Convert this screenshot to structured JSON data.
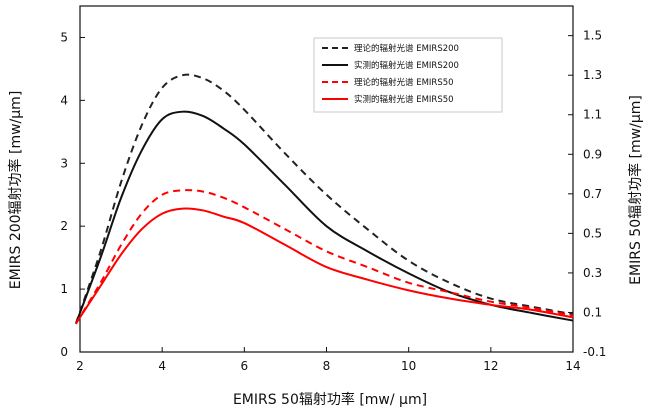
{
  "chart_data": {
    "type": "line",
    "xlabel": "EMIRS 50辐射功率 [mw/ µm]",
    "ylabel_left": "EMIRS 200辐射功率 [mw/µm]",
    "ylabel_right": "EMIRS 50辐射功率 [mw/µm]",
    "xlim": [
      2,
      14
    ],
    "ylim_left": [
      0,
      5.5
    ],
    "ylim_right": [
      -0.1,
      1.65
    ],
    "x_ticks": [
      "2",
      "4",
      "6",
      "8",
      "10",
      "12",
      "14"
    ],
    "y_left_ticks": [
      "0",
      "1",
      "2",
      "3",
      "4",
      "5"
    ],
    "y_right_ticks": [
      "-0.1",
      "0.1",
      "0.3",
      "0.5",
      "0.7",
      "0.9",
      "1.1",
      "1.3",
      "1.5"
    ],
    "grid": false,
    "legend_position": "top-right",
    "series": [
      {
        "name": "理论的辐射光谱 EMIRS200",
        "color": "#222222",
        "dash": true,
        "axis": "left",
        "x": [
          1.9,
          2.5,
          3.0,
          3.5,
          4.0,
          4.5,
          5.0,
          5.5,
          6.0,
          7.0,
          8.0,
          9.0,
          10.0,
          11.0,
          12.0,
          13.0,
          14.0
        ],
        "y": [
          0.45,
          1.6,
          2.7,
          3.6,
          4.2,
          4.4,
          4.35,
          4.15,
          3.85,
          3.15,
          2.5,
          1.95,
          1.45,
          1.1,
          0.85,
          0.72,
          0.6
        ]
      },
      {
        "name": "实测的辐射光谱 EMIRS200",
        "color": "#111111",
        "dash": false,
        "axis": "left",
        "x": [
          1.9,
          2.5,
          3.0,
          3.5,
          4.0,
          4.5,
          5.0,
          5.5,
          6.0,
          7.0,
          8.0,
          9.0,
          10.0,
          11.0,
          12.0,
          13.0,
          14.0
        ],
        "y": [
          0.45,
          1.5,
          2.45,
          3.2,
          3.7,
          3.82,
          3.75,
          3.55,
          3.3,
          2.65,
          2.0,
          1.6,
          1.25,
          0.95,
          0.75,
          0.62,
          0.5
        ]
      },
      {
        "name": "理论的辐射光谱 EMIRS50",
        "color": "#ff0000",
        "dash": true,
        "axis": "left",
        "x": [
          1.9,
          2.5,
          3.0,
          3.5,
          4.0,
          4.5,
          5.0,
          5.5,
          6.0,
          7.0,
          8.0,
          9.0,
          10.0,
          11.0,
          12.0,
          13.0,
          14.0
        ],
        "y": [
          0.45,
          1.1,
          1.7,
          2.2,
          2.5,
          2.57,
          2.55,
          2.45,
          2.3,
          1.95,
          1.6,
          1.35,
          1.1,
          0.95,
          0.8,
          0.7,
          0.58
        ]
      },
      {
        "name": "实测的辐射光谱 EMIRS50",
        "color": "#ff0000",
        "dash": false,
        "axis": "left",
        "x": [
          1.9,
          2.5,
          3.0,
          3.5,
          4.0,
          4.5,
          5.0,
          5.5,
          6.0,
          7.0,
          8.0,
          9.0,
          10.0,
          11.0,
          12.0,
          13.0,
          14.0
        ],
        "y": [
          0.45,
          1.05,
          1.55,
          1.95,
          2.2,
          2.28,
          2.25,
          2.15,
          2.05,
          1.7,
          1.35,
          1.15,
          0.98,
          0.85,
          0.75,
          0.67,
          0.55
        ]
      }
    ]
  }
}
